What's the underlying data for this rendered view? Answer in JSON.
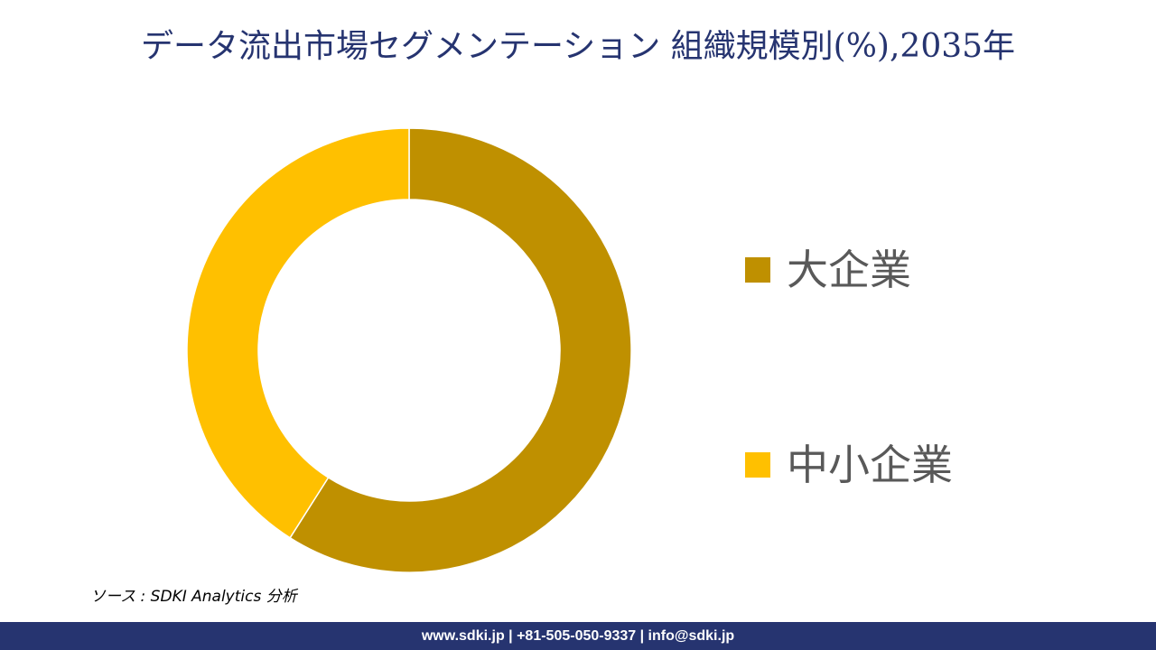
{
  "title": "データ流出市場セグメンテーション 組織規模別(%),2035年",
  "chart_data": {
    "type": "pie",
    "variant": "donut",
    "title": "データ流出市場セグメンテーション 組織規模別(%),2035年",
    "categories": [
      "大企業",
      "中小企業"
    ],
    "values": [
      59,
      41
    ],
    "unit": "%",
    "colors": [
      "#BF9000",
      "#FFC000"
    ],
    "start_angle_deg": 0,
    "direction": "clockwise",
    "legend_position": "right",
    "data_labels": false
  },
  "legend": {
    "items": [
      {
        "label": "大企業",
        "color": "#BF9000"
      },
      {
        "label": "中小企業",
        "color": "#FFC000"
      }
    ]
  },
  "source": "ソース : SDKI Analytics  分析",
  "footer": {
    "text": "www.sdki.jp | +81-505-050-9337 | info@sdki.jp"
  }
}
